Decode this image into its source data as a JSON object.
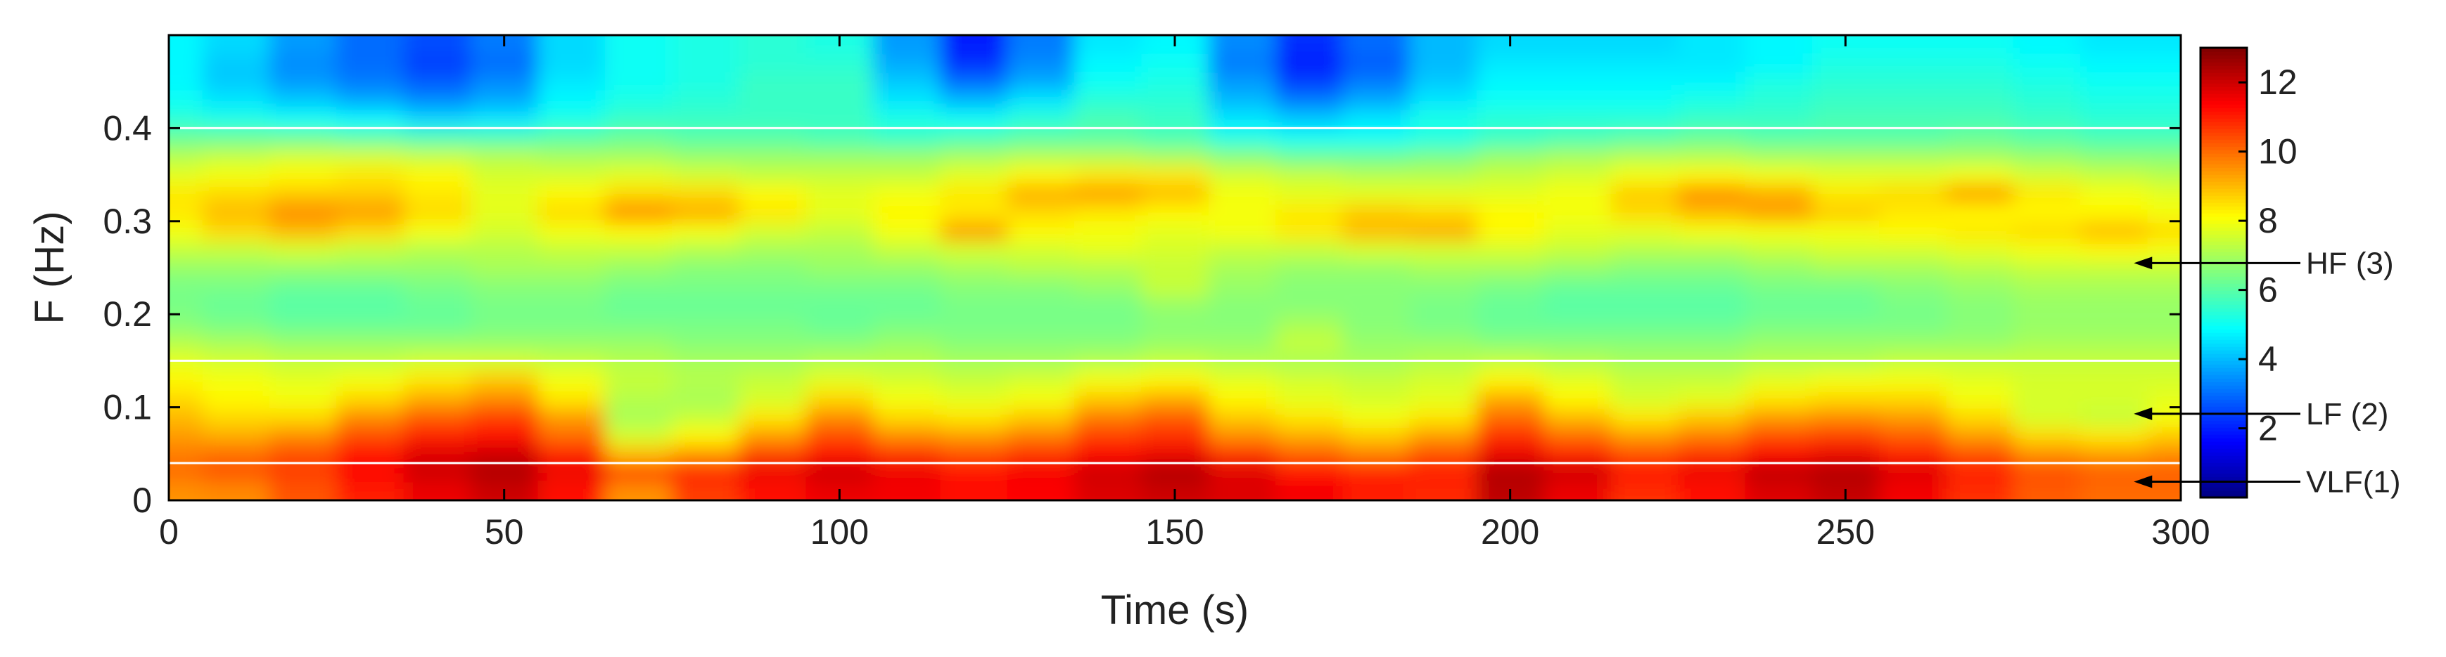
{
  "chart_data": {
    "type": "heatmap",
    "title": "",
    "xlabel": "Time (s)",
    "ylabel": "F (Hz)",
    "xlim": [
      0,
      300
    ],
    "ylim": [
      0,
      0.5
    ],
    "xticks": [
      0,
      50,
      100,
      150,
      200,
      250,
      300
    ],
    "yticks": [
      0,
      0.1,
      0.2,
      0.3,
      0.4
    ],
    "colorbar": {
      "range": [
        0,
        13
      ],
      "ticks": [
        2,
        4,
        6,
        8,
        10,
        12
      ],
      "colormap": "jet"
    },
    "band_lines": [
      0.04,
      0.15,
      0.4
    ],
    "annotations": [
      {
        "label": "HF (3)",
        "x": 293,
        "y": 0.255
      },
      {
        "label": "LF (2)",
        "x": 293,
        "y": 0.093
      },
      {
        "label": "VLF(1)",
        "x": 293,
        "y": 0.02
      }
    ],
    "x": [
      0,
      10,
      20,
      30,
      40,
      50,
      60,
      70,
      80,
      90,
      100,
      110,
      120,
      130,
      140,
      150,
      160,
      170,
      180,
      190,
      200,
      210,
      220,
      230,
      240,
      250,
      260,
      270,
      280,
      290,
      300
    ],
    "y": [
      0.01,
      0.03,
      0.05,
      0.07,
      0.09,
      0.11,
      0.13,
      0.15,
      0.17,
      0.19,
      0.21,
      0.23,
      0.25,
      0.27,
      0.29,
      0.31,
      0.33,
      0.35,
      0.37,
      0.39,
      0.41,
      0.43,
      0.45,
      0.47,
      0.49
    ],
    "z": [
      [
        9.5,
        9.6,
        10.3,
        11,
        11.6,
        12,
        11.2,
        9.5,
        10.6,
        11.2,
        11.6,
        11.5,
        11.2,
        11.4,
        11.8,
        12,
        11.8,
        11.5,
        11,
        10.9,
        12.2,
        11.6,
        10.8,
        11.2,
        11.8,
        12.1,
        11.5,
        10.8,
        10.2,
        10,
        10
      ],
      [
        10,
        10.3,
        10.6,
        11.4,
        12,
        12.4,
        11.6,
        10.6,
        11,
        11.6,
        12,
        11.6,
        11.2,
        11.5,
        12,
        12.4,
        11.8,
        11.2,
        11,
        11,
        12.4,
        12,
        11.2,
        11.6,
        12.2,
        12.4,
        11.8,
        11,
        10.4,
        10.2,
        10.2
      ],
      [
        9.8,
        10,
        10.4,
        11.2,
        11.8,
        12,
        11,
        9,
        9.5,
        10.6,
        11.2,
        10.8,
        10.4,
        10.8,
        11.4,
        11.6,
        10.8,
        10.2,
        9.8,
        10.4,
        11.6,
        11,
        10.4,
        10.8,
        11.4,
        11.6,
        11,
        10.4,
        9.6,
        9.4,
        9.6
      ],
      [
        9.4,
        9.2,
        9.6,
        10.4,
        11,
        11.2,
        10,
        7.6,
        8.2,
        9.4,
        10.4,
        9.6,
        9.4,
        9.8,
        10.6,
        10.8,
        9.6,
        9.2,
        8.8,
        9.4,
        10.8,
        10,
        9.4,
        9.8,
        10.4,
        10.6,
        10.2,
        9.4,
        8.6,
        8.4,
        8.8
      ],
      [
        9,
        8.6,
        8.6,
        9.6,
        10.2,
        10.6,
        9.4,
        7,
        7.4,
        8.4,
        9.6,
        8.6,
        8.4,
        8.8,
        9.8,
        10.2,
        8.8,
        8.4,
        8,
        8.4,
        10,
        9,
        8.4,
        8.8,
        9.4,
        9.6,
        9.4,
        8.6,
        7.6,
        7.4,
        8
      ],
      [
        8.6,
        8.2,
        8,
        8.6,
        9.2,
        9.6,
        8.4,
        7.2,
        7,
        7.6,
        8.6,
        8,
        7.8,
        8,
        8.8,
        9.2,
        8.2,
        7.8,
        7.6,
        7.8,
        9.2,
        8.2,
        7.6,
        7.8,
        8.4,
        8.6,
        8.6,
        8,
        7.6,
        7.6,
        7.8
      ],
      [
        8.2,
        8,
        7.8,
        8,
        8.4,
        8.8,
        8,
        7.4,
        7.2,
        7.4,
        7.8,
        7.6,
        7.4,
        7.6,
        8,
        8.2,
        7.8,
        7.6,
        7.4,
        7.6,
        8.2,
        7.8,
        7.4,
        7.4,
        7.8,
        8,
        8,
        7.8,
        7.6,
        7.6,
        7.6
      ],
      [
        7.8,
        7.6,
        7.4,
        7.4,
        7.6,
        7.6,
        7.4,
        7.2,
        7,
        7,
        7.2,
        7.2,
        7,
        7,
        7.2,
        7.4,
        7.2,
        7,
        7,
        7.2,
        7.4,
        7.2,
        7,
        7,
        7.2,
        7.2,
        7.4,
        7.4,
        7.4,
        7.4,
        7.4
      ],
      [
        7.2,
        7,
        6.8,
        6.8,
        6.8,
        6.8,
        6.8,
        6.8,
        6.6,
        6.6,
        6.6,
        6.8,
        6.6,
        6.6,
        6.6,
        6.8,
        6.8,
        7.4,
        6.8,
        6.8,
        6.6,
        6.6,
        6.6,
        6.6,
        6.8,
        6.8,
        6.8,
        6.8,
        7,
        7,
        7
      ],
      [
        6.6,
        6.4,
        6.2,
        6.2,
        6.2,
        6.4,
        6.4,
        6.4,
        6.4,
        6.4,
        6.2,
        6.4,
        6.4,
        6.4,
        6.4,
        6.6,
        6.6,
        7,
        6.6,
        6.4,
        6.2,
        6.2,
        6.2,
        6.2,
        6.4,
        6.4,
        6.4,
        6.6,
        6.8,
        6.8,
        6.8
      ],
      [
        6.4,
        6.2,
        6,
        6,
        6.2,
        6.4,
        6.4,
        6.2,
        6.2,
        6.2,
        6.2,
        6.2,
        6.4,
        6.4,
        6.4,
        6.8,
        6.6,
        6.6,
        6.6,
        6.4,
        6.2,
        6,
        6,
        6,
        6.2,
        6.2,
        6.4,
        6.6,
        6.8,
        6.8,
        6.8
      ],
      [
        6.4,
        6.4,
        6.2,
        6.2,
        6.4,
        6.6,
        6.6,
        6.4,
        6.4,
        6.4,
        6.4,
        6.4,
        6.6,
        6.6,
        6.8,
        7.4,
        6.8,
        6.6,
        6.6,
        6.6,
        6.4,
        6.2,
        6.2,
        6.2,
        6.4,
        6.4,
        6.6,
        6.8,
        7,
        7,
        7
      ],
      [
        6.8,
        6.8,
        6.8,
        6.8,
        6.8,
        7,
        7,
        6.8,
        6.6,
        6.6,
        6.8,
        6.8,
        7,
        7.2,
        7.2,
        7.4,
        7,
        6.8,
        6.8,
        7,
        7,
        6.8,
        6.6,
        6.6,
        6.8,
        7,
        7,
        7.2,
        7.4,
        7.4,
        7.4
      ],
      [
        7.4,
        7.4,
        7.6,
        7.4,
        7.2,
        7.2,
        7.4,
        7.4,
        7.2,
        7,
        7,
        7.4,
        7.6,
        7.6,
        7.8,
        7.6,
        7.4,
        7.4,
        7.6,
        7.6,
        7.6,
        7.4,
        7.2,
        7.2,
        7.4,
        7.6,
        7.6,
        7.8,
        8,
        8.2,
        8
      ],
      [
        8,
        8.6,
        9,
        8.6,
        8,
        7.6,
        8,
        8.2,
        8,
        7.6,
        7.4,
        8,
        9.4,
        8.2,
        8,
        7.8,
        8,
        8.4,
        9,
        9.2,
        8.2,
        7.8,
        7.8,
        8,
        8,
        8,
        8.2,
        8.4,
        8.6,
        9,
        8.6
      ],
      [
        8.4,
        9,
        9.6,
        9.4,
        8.6,
        7.8,
        8.6,
        9.6,
        9.2,
        8.4,
        7.8,
        8.2,
        8.4,
        8.6,
        8.4,
        8.2,
        8,
        8.4,
        8.8,
        8.6,
        8.2,
        8,
        8.6,
        9,
        9.4,
        8.8,
        8.4,
        8.2,
        8.2,
        8.2,
        8
      ],
      [
        8.4,
        8.6,
        8.8,
        8.8,
        8.4,
        7.8,
        8.2,
        8.6,
        8.6,
        8.2,
        7.8,
        8,
        8.4,
        9.2,
        9.4,
        9,
        8,
        7.8,
        7.8,
        7.8,
        7.8,
        8,
        8.8,
        9.6,
        9.2,
        8.4,
        8.6,
        9.4,
        8.4,
        8,
        7.8
      ],
      [
        7.8,
        8,
        8.2,
        8.4,
        8.2,
        7.6,
        7.6,
        7.8,
        7.6,
        7.4,
        7.4,
        7.4,
        7.8,
        8.2,
        8.4,
        8.4,
        7.6,
        7.4,
        7.2,
        7.2,
        7.4,
        7.6,
        8,
        8.2,
        8,
        7.8,
        7.8,
        8,
        7.6,
        7.4,
        7.2
      ],
      [
        7.2,
        7.4,
        7.6,
        7.6,
        7.4,
        7.2,
        7,
        7,
        6.8,
        6.8,
        6.8,
        6.8,
        7,
        7.2,
        7.2,
        7,
        6.6,
        6.2,
        6.2,
        6.4,
        6.8,
        7,
        7.2,
        7.2,
        7,
        7,
        7,
        7,
        6.8,
        6.6,
        6.6
      ],
      [
        6.2,
        6.2,
        6.2,
        6,
        5.8,
        5.8,
        6,
        6.2,
        6,
        6,
        5.8,
        5.6,
        5.8,
        6,
        6,
        5.8,
        5.2,
        5,
        5,
        5.2,
        5.6,
        5.8,
        6,
        6.2,
        6,
        6,
        6,
        6.2,
        6,
        5.8,
        5.8
      ],
      [
        5.4,
        5.2,
        5,
        4.8,
        4.4,
        4.6,
        5.2,
        5.6,
        5.6,
        5.6,
        5.6,
        5.2,
        5,
        5.4,
        5.8,
        5.6,
        4.6,
        4.2,
        4.6,
        5.2,
        5.4,
        5.4,
        5.4,
        5.6,
        5.6,
        5.8,
        5.8,
        5.8,
        5.6,
        5.4,
        5.4
      ],
      [
        5,
        4.6,
        4.2,
        3.8,
        3.4,
        3.8,
        4.8,
        5.2,
        5.4,
        5.6,
        5.6,
        4.6,
        4,
        4.6,
        5.4,
        5.4,
        4,
        3.2,
        3.8,
        4.6,
        5,
        5,
        5,
        5.2,
        5.4,
        5.6,
        5.6,
        5.6,
        5.4,
        5.2,
        5.2
      ],
      [
        4.8,
        4.2,
        3.6,
        3.2,
        2.8,
        3.4,
        4.6,
        5,
        5.2,
        5.6,
        5.6,
        4.2,
        3,
        3.8,
        5,
        5.2,
        3.6,
        2.4,
        3.2,
        4.2,
        4.8,
        4.8,
        4.8,
        4.8,
        5.2,
        5.4,
        5.4,
        5.4,
        5.2,
        5,
        5
      ],
      [
        4.8,
        4.2,
        3.4,
        3,
        2.4,
        3,
        4.4,
        5,
        5.2,
        5.4,
        5.4,
        3.8,
        2.2,
        3.4,
        4.8,
        5,
        3.2,
        2,
        2.8,
        4,
        4.6,
        4.6,
        4.6,
        4.6,
        4.8,
        5.2,
        5.2,
        5.2,
        5,
        4.8,
        4.8
      ],
      [
        4.8,
        4.4,
        3.6,
        3,
        2.6,
        3.2,
        4.4,
        5,
        5.2,
        5.4,
        5.2,
        3.6,
        2,
        3.2,
        4.6,
        4.8,
        3.4,
        2.2,
        3,
        4,
        4.4,
        4.4,
        4.4,
        4.6,
        4.8,
        5,
        5,
        5,
        4.8,
        4.6,
        4.6
      ]
    ]
  }
}
